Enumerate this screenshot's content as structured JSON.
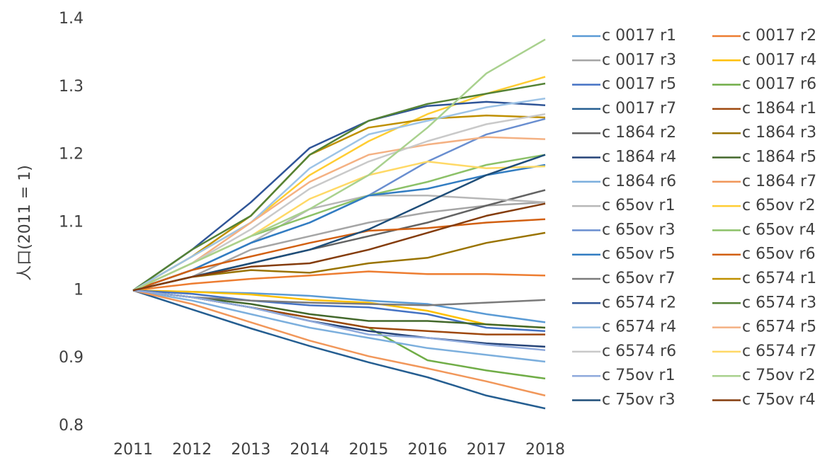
{
  "chart_data": {
    "type": "line",
    "y_label": "人口(2011 = 1)",
    "categories": [
      "2011",
      "2012",
      "2013",
      "2014",
      "2015",
      "2016",
      "2017",
      "2018"
    ],
    "ylim": [
      0.8,
      1.4
    ],
    "yticks": [
      0.8,
      0.9,
      1,
      1.1,
      1.2,
      1.3,
      1.4
    ],
    "legend": "right",
    "series": [
      {
        "name": "c 0017 r1",
        "color": "#5B9BD5",
        "values": [
          1,
          0.998,
          0.996,
          0.992,
          0.985,
          0.98,
          0.965,
          0.953
        ]
      },
      {
        "name": "c 0017 r2",
        "color": "#ED7D31",
        "values": [
          1,
          1.01,
          1.017,
          1.022,
          1.028,
          1.024,
          1.024,
          1.022
        ]
      },
      {
        "name": "c 0017 r3",
        "color": "#A5A5A5",
        "values": [
          1,
          1.02,
          1.06,
          1.08,
          1.1,
          1.115,
          1.125,
          1.13
        ]
      },
      {
        "name": "c 0017 r4",
        "color": "#FFC000",
        "values": [
          1,
          0.998,
          0.994,
          0.986,
          0.982,
          0.97,
          0.95,
          0.945
        ]
      },
      {
        "name": "c 0017 r5",
        "color": "#4472C4",
        "values": [
          1,
          0.995,
          0.985,
          0.978,
          0.975,
          0.965,
          0.945,
          0.94
        ]
      },
      {
        "name": "c 0017 r6",
        "color": "#70AD47",
        "values": [
          1,
          0.99,
          0.975,
          0.96,
          0.945,
          0.897,
          0.882,
          0.87
        ]
      },
      {
        "name": "c 0017 r7",
        "color": "#255E91",
        "values": [
          1,
          0.972,
          0.944,
          0.918,
          0.894,
          0.872,
          0.845,
          0.826
        ]
      },
      {
        "name": "c 1864 r1",
        "color": "#9E480E",
        "values": [
          1,
          0.99,
          0.975,
          0.96,
          0.945,
          0.94,
          0.935,
          0.935
        ]
      },
      {
        "name": "c 1864 r2",
        "color": "#636363",
        "values": [
          1,
          1.02,
          1.04,
          1.06,
          1.08,
          1.1,
          1.125,
          1.148
        ]
      },
      {
        "name": "c 1864 r3",
        "color": "#997300",
        "values": [
          1,
          1.02,
          1.03,
          1.026,
          1.04,
          1.048,
          1.07,
          1.085
        ]
      },
      {
        "name": "c 1864 r4",
        "color": "#264478",
        "values": [
          1,
          0.99,
          0.975,
          0.955,
          0.94,
          0.93,
          0.922,
          0.917
        ]
      },
      {
        "name": "c 1864 r5",
        "color": "#43682B",
        "values": [
          1,
          0.99,
          0.98,
          0.965,
          0.955,
          0.955,
          0.95,
          0.945
        ]
      },
      {
        "name": "c 1864 r6",
        "color": "#7CAFDD",
        "values": [
          1,
          0.985,
          0.965,
          0.945,
          0.93,
          0.915,
          0.905,
          0.895
        ]
      },
      {
        "name": "c 1864 r7",
        "color": "#F1975A",
        "values": [
          1,
          0.98,
          0.953,
          0.926,
          0.903,
          0.885,
          0.866,
          0.845
        ]
      },
      {
        "name": "c 65ov r1",
        "color": "#B7B7B7",
        "values": [
          1,
          1.03,
          1.07,
          1.12,
          1.14,
          1.14,
          1.135,
          1.13
        ]
      },
      {
        "name": "c 65ov r2",
        "color": "#FFCD33",
        "values": [
          1,
          1.05,
          1.1,
          1.17,
          1.22,
          1.26,
          1.29,
          1.315
        ]
      },
      {
        "name": "c 65ov r3",
        "color": "#698ED0",
        "values": [
          1,
          1.03,
          1.07,
          1.1,
          1.14,
          1.19,
          1.23,
          1.253
        ]
      },
      {
        "name": "c 65ov r4",
        "color": "#8CC168",
        "values": [
          1,
          1.04,
          1.08,
          1.11,
          1.14,
          1.16,
          1.185,
          1.2
        ]
      },
      {
        "name": "c 65ov r5",
        "color": "#327DC2",
        "values": [
          1,
          1.03,
          1.07,
          1.1,
          1.14,
          1.15,
          1.17,
          1.185
        ]
      },
      {
        "name": "c 65ov r6",
        "color": "#D26012",
        "values": [
          1,
          1.03,
          1.05,
          1.07,
          1.088,
          1.092,
          1.1,
          1.105
        ]
      },
      {
        "name": "c 65ov r7",
        "color": "#7B7B7B",
        "values": [
          1,
          0.99,
          0.985,
          0.982,
          0.98,
          0.978,
          0.982,
          0.986
        ]
      },
      {
        "name": "c 6574 r1",
        "color": "#BF9000",
        "values": [
          1,
          1.05,
          1.11,
          1.2,
          1.24,
          1.253,
          1.258,
          1.255
        ]
      },
      {
        "name": "c 6574 r2",
        "color": "#2F5597",
        "values": [
          1,
          1.06,
          1.13,
          1.21,
          1.25,
          1.272,
          1.278,
          1.273
        ]
      },
      {
        "name": "c 6574 r3",
        "color": "#548235",
        "values": [
          1,
          1.06,
          1.11,
          1.2,
          1.25,
          1.275,
          1.29,
          1.305
        ]
      },
      {
        "name": "c 6574 r4",
        "color": "#9DC3E6",
        "values": [
          1,
          1.05,
          1.1,
          1.18,
          1.23,
          1.25,
          1.27,
          1.283
        ]
      },
      {
        "name": "c 6574 r5",
        "color": "#F4B183",
        "values": [
          1,
          1.04,
          1.1,
          1.16,
          1.2,
          1.215,
          1.226,
          1.223
        ]
      },
      {
        "name": "c 6574 r6",
        "color": "#C9C9C9",
        "values": [
          1,
          1.04,
          1.09,
          1.15,
          1.19,
          1.22,
          1.245,
          1.26
        ]
      },
      {
        "name": "c 6574 r7",
        "color": "#FFD966",
        "values": [
          1,
          1.04,
          1.08,
          1.135,
          1.17,
          1.19,
          1.18,
          1.183
        ]
      },
      {
        "name": "c 75ov r1",
        "color": "#8FAADC",
        "values": [
          1,
          0.99,
          0.975,
          0.955,
          0.935,
          0.93,
          0.92,
          0.912
        ]
      },
      {
        "name": "c 75ov r2",
        "color": "#A9D18E",
        "values": [
          1,
          1.04,
          1.08,
          1.12,
          1.17,
          1.24,
          1.32,
          1.37
        ]
      },
      {
        "name": "c 75ov r3",
        "color": "#1F4E79",
        "values": [
          1,
          1.02,
          1.04,
          1.06,
          1.09,
          1.13,
          1.17,
          1.2
        ]
      },
      {
        "name": "c 75ov r4",
        "color": "#843C0C",
        "values": [
          1,
          1.02,
          1.035,
          1.04,
          1.06,
          1.085,
          1.11,
          1.128
        ]
      }
    ]
  }
}
